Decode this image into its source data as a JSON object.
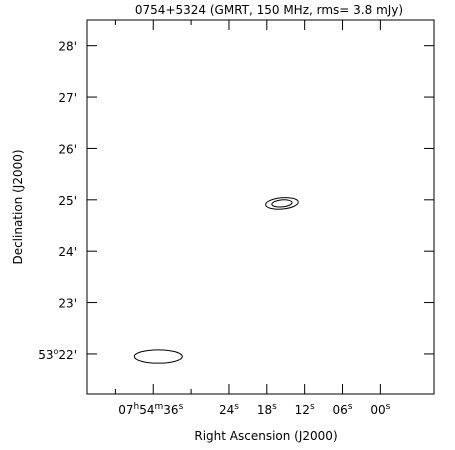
{
  "chart_data": {
    "type": "contour",
    "title": "0754+5324 (GMRT, 150 MHz, rms= 3.8 mJy)",
    "xlabel": "Right Ascension (J2000)",
    "ylabel": "Declination (J2000)",
    "x_unit": "RA seconds offset from 07h54m00s",
    "y_unit": "arcmin offset from 53d00m",
    "xlim": [
      46.5,
      -8.5
    ],
    "ylim": [
      21.22,
      28.5
    ],
    "x_ticks": [
      {
        "value": 36,
        "major": "07",
        "hsup": "h",
        "min": "54",
        "msup": "m",
        "sec": "36",
        "ssup": "s"
      },
      {
        "value": 24,
        "sec": "24",
        "ssup": "s"
      },
      {
        "value": 18,
        "sec": "18",
        "ssup": "s"
      },
      {
        "value": 12,
        "sec": "12",
        "ssup": "s"
      },
      {
        "value": 6,
        "sec": "06",
        "ssup": "s"
      },
      {
        "value": 0,
        "sec": "00",
        "ssup": "s"
      }
    ],
    "x_minor_ticks": [
      42,
      30
    ],
    "y_ticks": [
      {
        "value": 28,
        "text": "28'"
      },
      {
        "value": 27,
        "text": "27'"
      },
      {
        "value": 26,
        "text": "26'"
      },
      {
        "value": 25,
        "text": "25'"
      },
      {
        "value": 24,
        "text": "24'"
      },
      {
        "value": 23,
        "text": "23'"
      },
      {
        "value": 22,
        "deg": "53",
        "degsym": "o",
        "text": "22'"
      }
    ],
    "sources": [
      {
        "name": "component-1",
        "ra": 15.6,
        "dec": 24.93,
        "ra_halfwidth": 2.6,
        "dec_halfwidth": 0.11,
        "angle": -5,
        "levels": [
          1.0,
          0.62
        ]
      },
      {
        "name": "component-2",
        "ra": 35.2,
        "dec": 21.95,
        "ra_halfwidth": 3.8,
        "dec_halfwidth": 0.13,
        "angle": 0,
        "levels": [
          1.0
        ]
      }
    ]
  }
}
